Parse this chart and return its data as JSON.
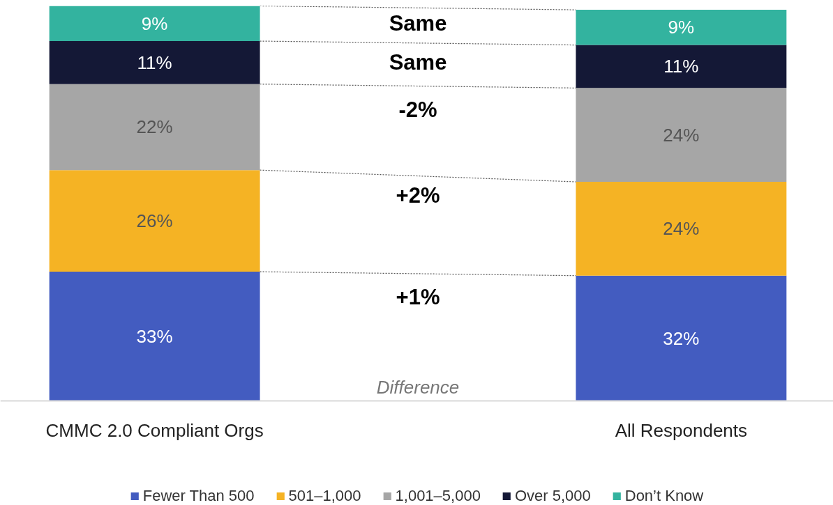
{
  "chart_data": {
    "type": "bar",
    "stacked": true,
    "categories": [
      "CMMC 2.0 Compliant Orgs",
      "All Respondents"
    ],
    "series": [
      {
        "name": "Fewer Than 500",
        "color": "#435cc0",
        "values": [
          33,
          32
        ],
        "value_labels": [
          "33%",
          "32%"
        ]
      },
      {
        "name": "501–1,000",
        "color": "#f5b324",
        "values": [
          26,
          24
        ],
        "value_labels": [
          "26%",
          "24%"
        ]
      },
      {
        "name": "1,001–5,000",
        "color": "#a6a6a6",
        "values": [
          22,
          24
        ],
        "value_labels": [
          "22%",
          "24%"
        ]
      },
      {
        "name": "Over 5,000",
        "color": "#141836",
        "values": [
          11,
          11
        ],
        "value_labels": [
          "11%",
          "11%"
        ]
      },
      {
        "name": "Don’t Know",
        "color": "#33b39f",
        "values": [
          9,
          9
        ],
        "value_labels": [
          "9%",
          "9%"
        ]
      }
    ],
    "annotations": [
      "Same",
      "Same",
      "-2%",
      "+2%",
      "+1%",
      "Difference"
    ],
    "legend": "bottom",
    "grid": false
  }
}
